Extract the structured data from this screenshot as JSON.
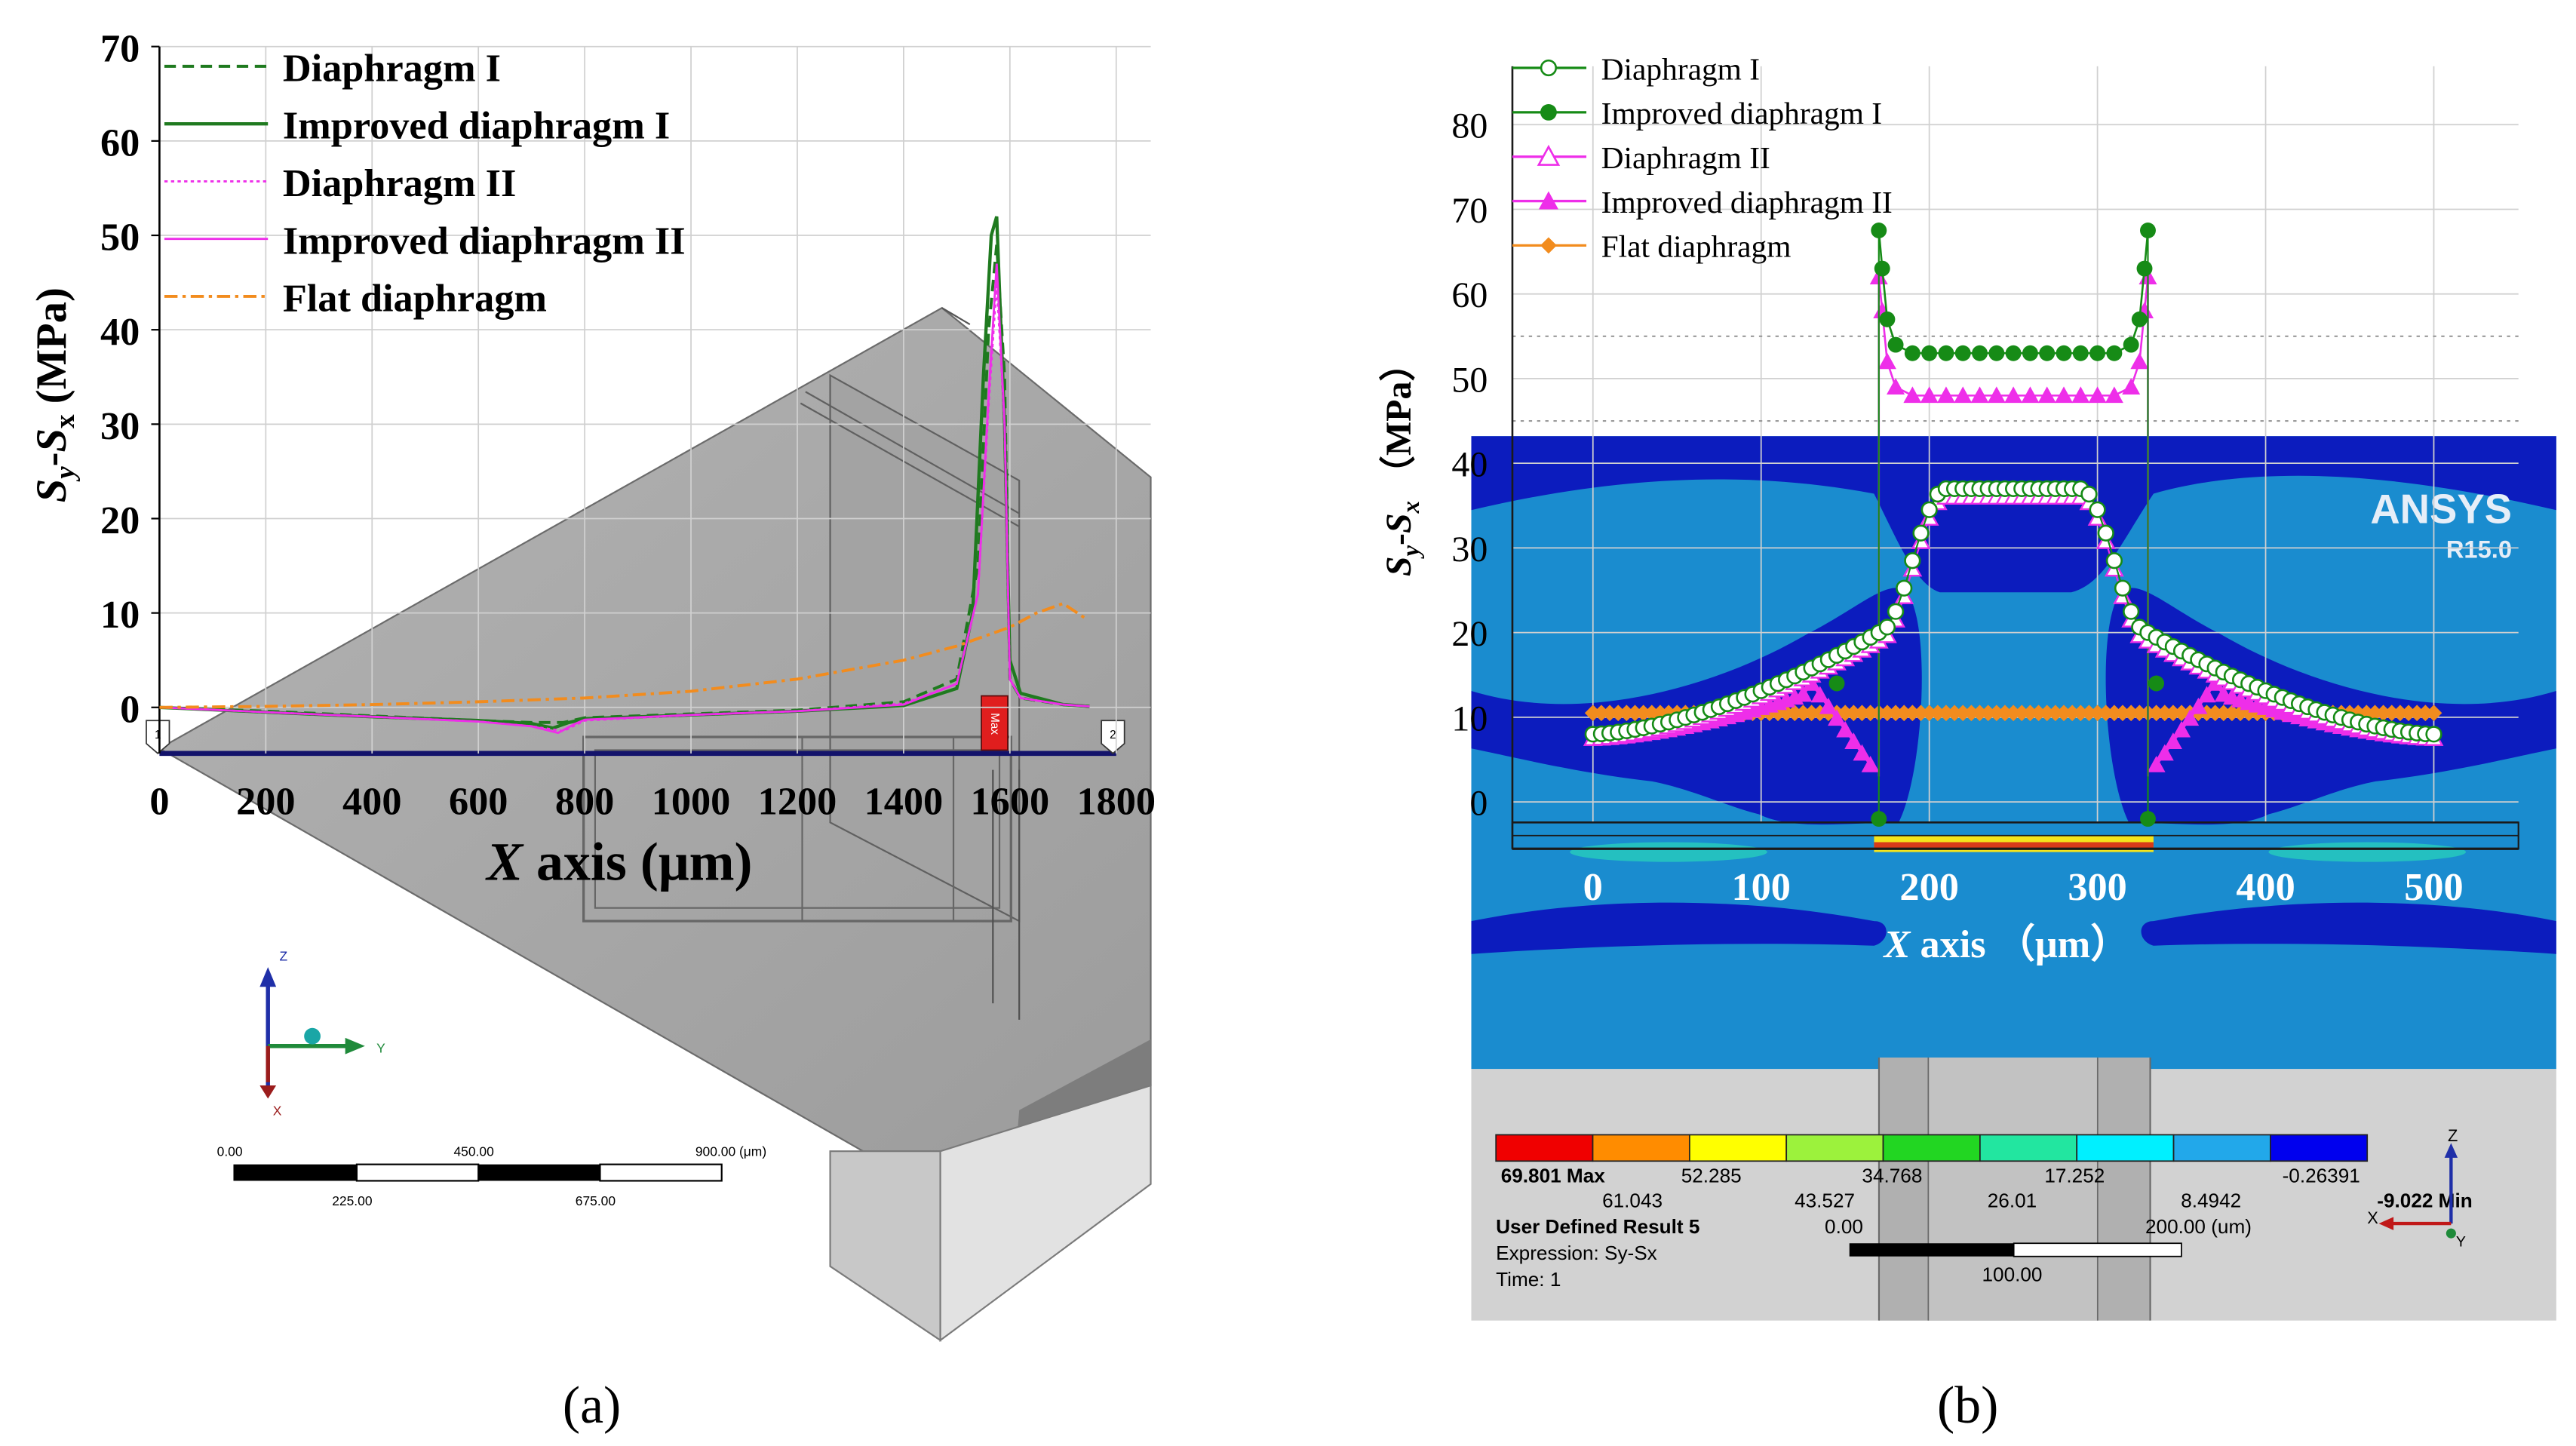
{
  "figure": {
    "caption_a": "(a)",
    "caption_b": "(b)"
  },
  "colors": {
    "green_dark": "#1f7a1f",
    "green_marker": "#168b16",
    "magenta": "#ee2ee9",
    "orange": "#f28c1e",
    "grid": "#d0d0d0",
    "ansys_bg": "#1a8ccf",
    "ansys_blue_dark": "#0c1cbe",
    "gray_model": "#a7a7a7"
  },
  "chart_data": [
    {
      "id": "a",
      "type": "line",
      "xlabel_italic": "X",
      "xlabel_rest": " axis (μm)",
      "ylabel_s1": "S",
      "ylabel_sub1": "y",
      "ylabel_dash": "-",
      "ylabel_s2": "S",
      "ylabel_sub2": "x",
      "ylabel_unit": " (MPa)",
      "xlim": [
        0,
        1800
      ],
      "ylim": [
        -5,
        70
      ],
      "xticks": [
        "0",
        "200",
        "400",
        "600",
        "800",
        "1000",
        "1200",
        "1400",
        "1600",
        "1800"
      ],
      "yticks": [
        "0",
        "10",
        "20",
        "30",
        "40",
        "50",
        "60",
        "70"
      ],
      "legend_position": "top-left",
      "series": [
        {
          "name": "Diaphragm I",
          "style": "dashed-green",
          "x": [
            0,
            200,
            400,
            600,
            700,
            760,
            800,
            1000,
            1200,
            1400,
            1500,
            1540,
            1560,
            1575,
            1590,
            1600,
            1620,
            1700,
            1750
          ],
          "y": [
            0,
            -0.4,
            -0.9,
            -1.4,
            -1.6,
            -1.6,
            -1.1,
            -0.7,
            -0.3,
            0.6,
            3,
            15,
            40,
            49,
            35,
            3,
            1,
            0.3,
            0.1
          ]
        },
        {
          "name": "Improved diaphragm I",
          "style": "solid-green",
          "x": [
            0,
            200,
            400,
            600,
            700,
            740,
            770,
            800,
            1000,
            1200,
            1400,
            1500,
            1530,
            1550,
            1565,
            1575,
            1590,
            1600,
            1620,
            1700,
            1750
          ],
          "y": [
            0,
            -0.5,
            -1.0,
            -1.4,
            -1.7,
            -2.2,
            -1.6,
            -1.2,
            -0.8,
            -0.4,
            0.2,
            2,
            10,
            35,
            50,
            52,
            30,
            5,
            1.5,
            0.3,
            0.1
          ]
        },
        {
          "name": "Diaphragm II",
          "style": "dotted-magenta",
          "x": [
            0,
            200,
            400,
            600,
            700,
            760,
            800,
            1000,
            1200,
            1400,
            1500,
            1540,
            1560,
            1575,
            1590,
            1600,
            1620,
            1700,
            1750
          ],
          "y": [
            0,
            -0.5,
            -1.0,
            -1.5,
            -2.0,
            -2.5,
            -1.4,
            -0.8,
            -0.4,
            0.4,
            2.5,
            12,
            32,
            45,
            30,
            3,
            1,
            0.3,
            0.1
          ]
        },
        {
          "name": "Improved diaphragm II",
          "style": "solid-magenta",
          "x": [
            0,
            200,
            400,
            600,
            700,
            750,
            780,
            800,
            1000,
            1200,
            1400,
            1500,
            1540,
            1560,
            1575,
            1590,
            1600,
            1620,
            1700,
            1750
          ],
          "y": [
            0,
            -0.5,
            -1.0,
            -1.5,
            -2.0,
            -2.7,
            -1.8,
            -1.3,
            -0.8,
            -0.4,
            0.3,
            2.5,
            12,
            33,
            47,
            30,
            3,
            1,
            0.3,
            0.1
          ]
        },
        {
          "name": "Flat diaphragm",
          "style": "dashdot-orange",
          "x": [
            0,
            200,
            400,
            600,
            800,
            1000,
            1200,
            1400,
            1500,
            1600,
            1650,
            1700,
            1740
          ],
          "y": [
            0,
            0.1,
            0.3,
            0.6,
            1.0,
            1.7,
            3.0,
            5.0,
            6.5,
            8.5,
            10,
            11,
            9.5
          ]
        }
      ],
      "model": {
        "scale_ticks": [
          "0.00",
          "450.00",
          "900.00 (μm)"
        ],
        "scale_subticks": [
          "225.00",
          "675.00"
        ],
        "max_tag": "Max",
        "probe_1": "1",
        "probe_2": "2",
        "triad_z": "Z",
        "triad_y": "Y",
        "triad_x": "X"
      }
    },
    {
      "id": "b",
      "type": "line",
      "xlabel_italic": "X",
      "xlabel_rest": " axis （μm）",
      "ylabel_s1": "S",
      "ylabel_sub1": "y",
      "ylabel_dash": "-",
      "ylabel_s2": "S",
      "ylabel_sub2": "x",
      "ylabel_unit": " （MPa）",
      "xlim": [
        -50,
        550
      ],
      "ylim": [
        -5,
        85
      ],
      "xticks": [
        "0",
        "100",
        "200",
        "300",
        "400",
        "500"
      ],
      "yticks": [
        "0",
        "10",
        "20",
        "30",
        "40",
        "50",
        "60",
        "70",
        "80"
      ],
      "legend_position": "top-left",
      "series": [
        {
          "name": "Diaphragm I",
          "marker": "open-circle",
          "x_range": [
            0,
            500
          ],
          "profile": "plateau",
          "base": 8,
          "mid": 37,
          "peak": 20
        },
        {
          "name": "Improved diaphragm I",
          "marker": "filled-circle",
          "x_range": [
            170,
            330
          ],
          "edge_values": [
            67.5,
            63,
            57,
            54
          ],
          "plateau": 53,
          "lower_branch_min": -2
        },
        {
          "name": "Diaphragm II",
          "marker": "open-triangle",
          "x_range": [
            0,
            500
          ],
          "profile": "plateau",
          "base": 7.5,
          "mid": 36,
          "peak": 19
        },
        {
          "name": "Improved diaphragm II",
          "marker": "filled-triangle",
          "x_range": [
            0,
            500
          ],
          "edge_values": [
            62,
            58,
            52,
            49
          ],
          "plateau": 48,
          "dip": 3
        },
        {
          "name": "Flat diaphragm",
          "marker": "filled-diamond",
          "x_range": [
            0,
            500
          ],
          "value": 10.5
        }
      ],
      "ansys": {
        "brand": "ANSYS",
        "version": "R15.0",
        "legend_values_top": [
          "69.801 Max",
          "52.285",
          "34.768",
          "17.252",
          "-0.26391"
        ],
        "legend_values_bottom": [
          "61.043",
          "43.527",
          "26.01",
          "8.4942",
          "-9.022 Min"
        ],
        "result_name": "User Defined Result 5",
        "expression": "Expression: Sy-Sx",
        "time": "Time: 1",
        "scale_start": "0.00",
        "scale_end": "200.00 (um)",
        "scale_mid": "100.00",
        "triad_z": "Z",
        "triad_x": "X",
        "triad_y": "Y",
        "color_bands": [
          "#f00000",
          "#ff8c00",
          "#ffff00",
          "#9cf23c",
          "#22d622",
          "#22e6a0",
          "#00f0ff",
          "#22a8ea",
          "#0000ee"
        ]
      }
    }
  ]
}
